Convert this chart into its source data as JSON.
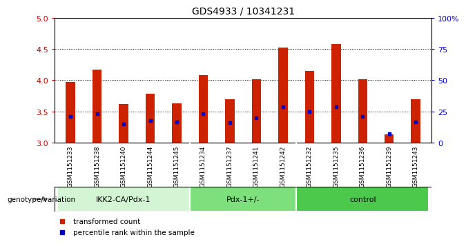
{
  "title": "GDS4933 / 10341231",
  "samples": [
    "GSM1151233",
    "GSM1151238",
    "GSM1151240",
    "GSM1151244",
    "GSM1151245",
    "GSM1151234",
    "GSM1151237",
    "GSM1151241",
    "GSM1151242",
    "GSM1151232",
    "GSM1151235",
    "GSM1151236",
    "GSM1151239",
    "GSM1151243"
  ],
  "bar_values": [
    3.97,
    4.17,
    3.62,
    3.78,
    3.63,
    4.08,
    3.7,
    4.02,
    4.52,
    4.15,
    4.58,
    4.02,
    3.13,
    3.7
  ],
  "percentile_values": [
    3.42,
    3.47,
    3.3,
    3.35,
    3.33,
    3.47,
    3.32,
    3.4,
    3.58,
    3.5,
    3.58,
    3.42,
    3.15,
    3.33
  ],
  "bar_bottom": 3.0,
  "ylim_left": [
    3.0,
    5.0
  ],
  "ylim_right": [
    0,
    100
  ],
  "yticks_left": [
    3.0,
    3.5,
    4.0,
    4.5,
    5.0
  ],
  "yticks_right": [
    0,
    25,
    50,
    75,
    100
  ],
  "ytick_labels_right": [
    "0",
    "25",
    "50",
    "75",
    "100%"
  ],
  "groups": [
    {
      "label": "IKK2-CA/Pdx-1",
      "start": 0,
      "end": 5,
      "color": "#d4f5d4"
    },
    {
      "label": "Pdx-1+/-",
      "start": 5,
      "end": 9,
      "color": "#7de07d"
    },
    {
      "label": "control",
      "start": 9,
      "end": 14,
      "color": "#4cc94c"
    }
  ],
  "bar_color": "#cc2200",
  "percentile_color": "#0000cc",
  "bar_width": 0.35,
  "xlabel_group": "genotype/variation",
  "legend_items": [
    {
      "label": "transformed count",
      "color": "#cc2200"
    },
    {
      "label": "percentile rank within the sample",
      "color": "#0000cc"
    }
  ],
  "tick_area_bg": "#cccccc",
  "group_separator_color": "#ffffff",
  "ytick_left_color": "#cc0000",
  "ytick_right_color": "#0000cc"
}
